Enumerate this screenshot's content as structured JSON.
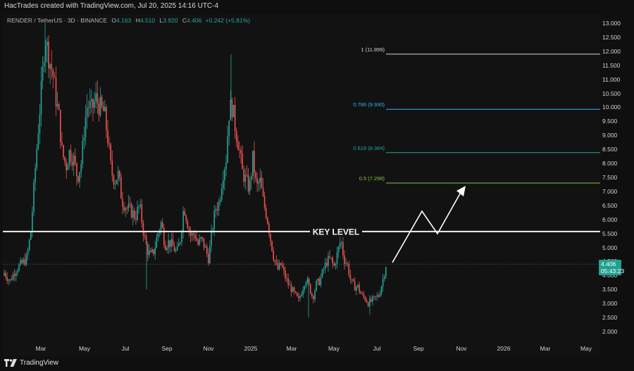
{
  "header": {
    "credit": "HacTrades created with TradingView.com, Jul 20, 2025 14:16 UTC-4"
  },
  "legend": {
    "symbol": "RENDER / TetherUS · 3D · BINANCE",
    "open_label": "O",
    "open": "4.163",
    "high_label": "H",
    "high": "4.510",
    "low_label": "L",
    "low": "3.920",
    "close_label": "C",
    "close": "4.406",
    "change": "+0.242 (+5.81%)"
  },
  "price_axis": {
    "ticks": [
      "13.000",
      "12.500",
      "12.000",
      "11.500",
      "11.000",
      "10.500",
      "10.000",
      "9.500",
      "9.000",
      "8.500",
      "8.000",
      "7.500",
      "7.000",
      "6.500",
      "6.000",
      "5.500",
      "5.000",
      "4.500",
      "4.000",
      "3.500",
      "3.000",
      "2.500",
      "2.000"
    ]
  },
  "time_axis": {
    "ticks": [
      "Mar",
      "May",
      "Jul",
      "Sep",
      "Nov",
      "2025",
      "Mar",
      "May",
      "Jul",
      "Sep",
      "Nov",
      "2026",
      "Mar",
      "May"
    ]
  },
  "last_price": {
    "price": "4.406",
    "countdown": "05:43:23"
  },
  "fib_levels": [
    {
      "label": "1 (11.899)",
      "price": 11.899,
      "color": "#d1d4dc"
    },
    {
      "label": "0.786 (9.930)",
      "price": 9.93,
      "color": "#29b6f6"
    },
    {
      "label": "0.618 (8.384)",
      "price": 8.384,
      "color": "#26a69a"
    },
    {
      "label": "0.5 (7.298)",
      "price": 7.298,
      "color": "#8bc34a"
    }
  ],
  "key_level": {
    "label": "KEY LEVEL",
    "price": 5.57
  },
  "footer": {
    "brand": "TradingView"
  },
  "colors": {
    "up": "#26a69a",
    "down": "#ef5350",
    "background": "#121212"
  }
}
